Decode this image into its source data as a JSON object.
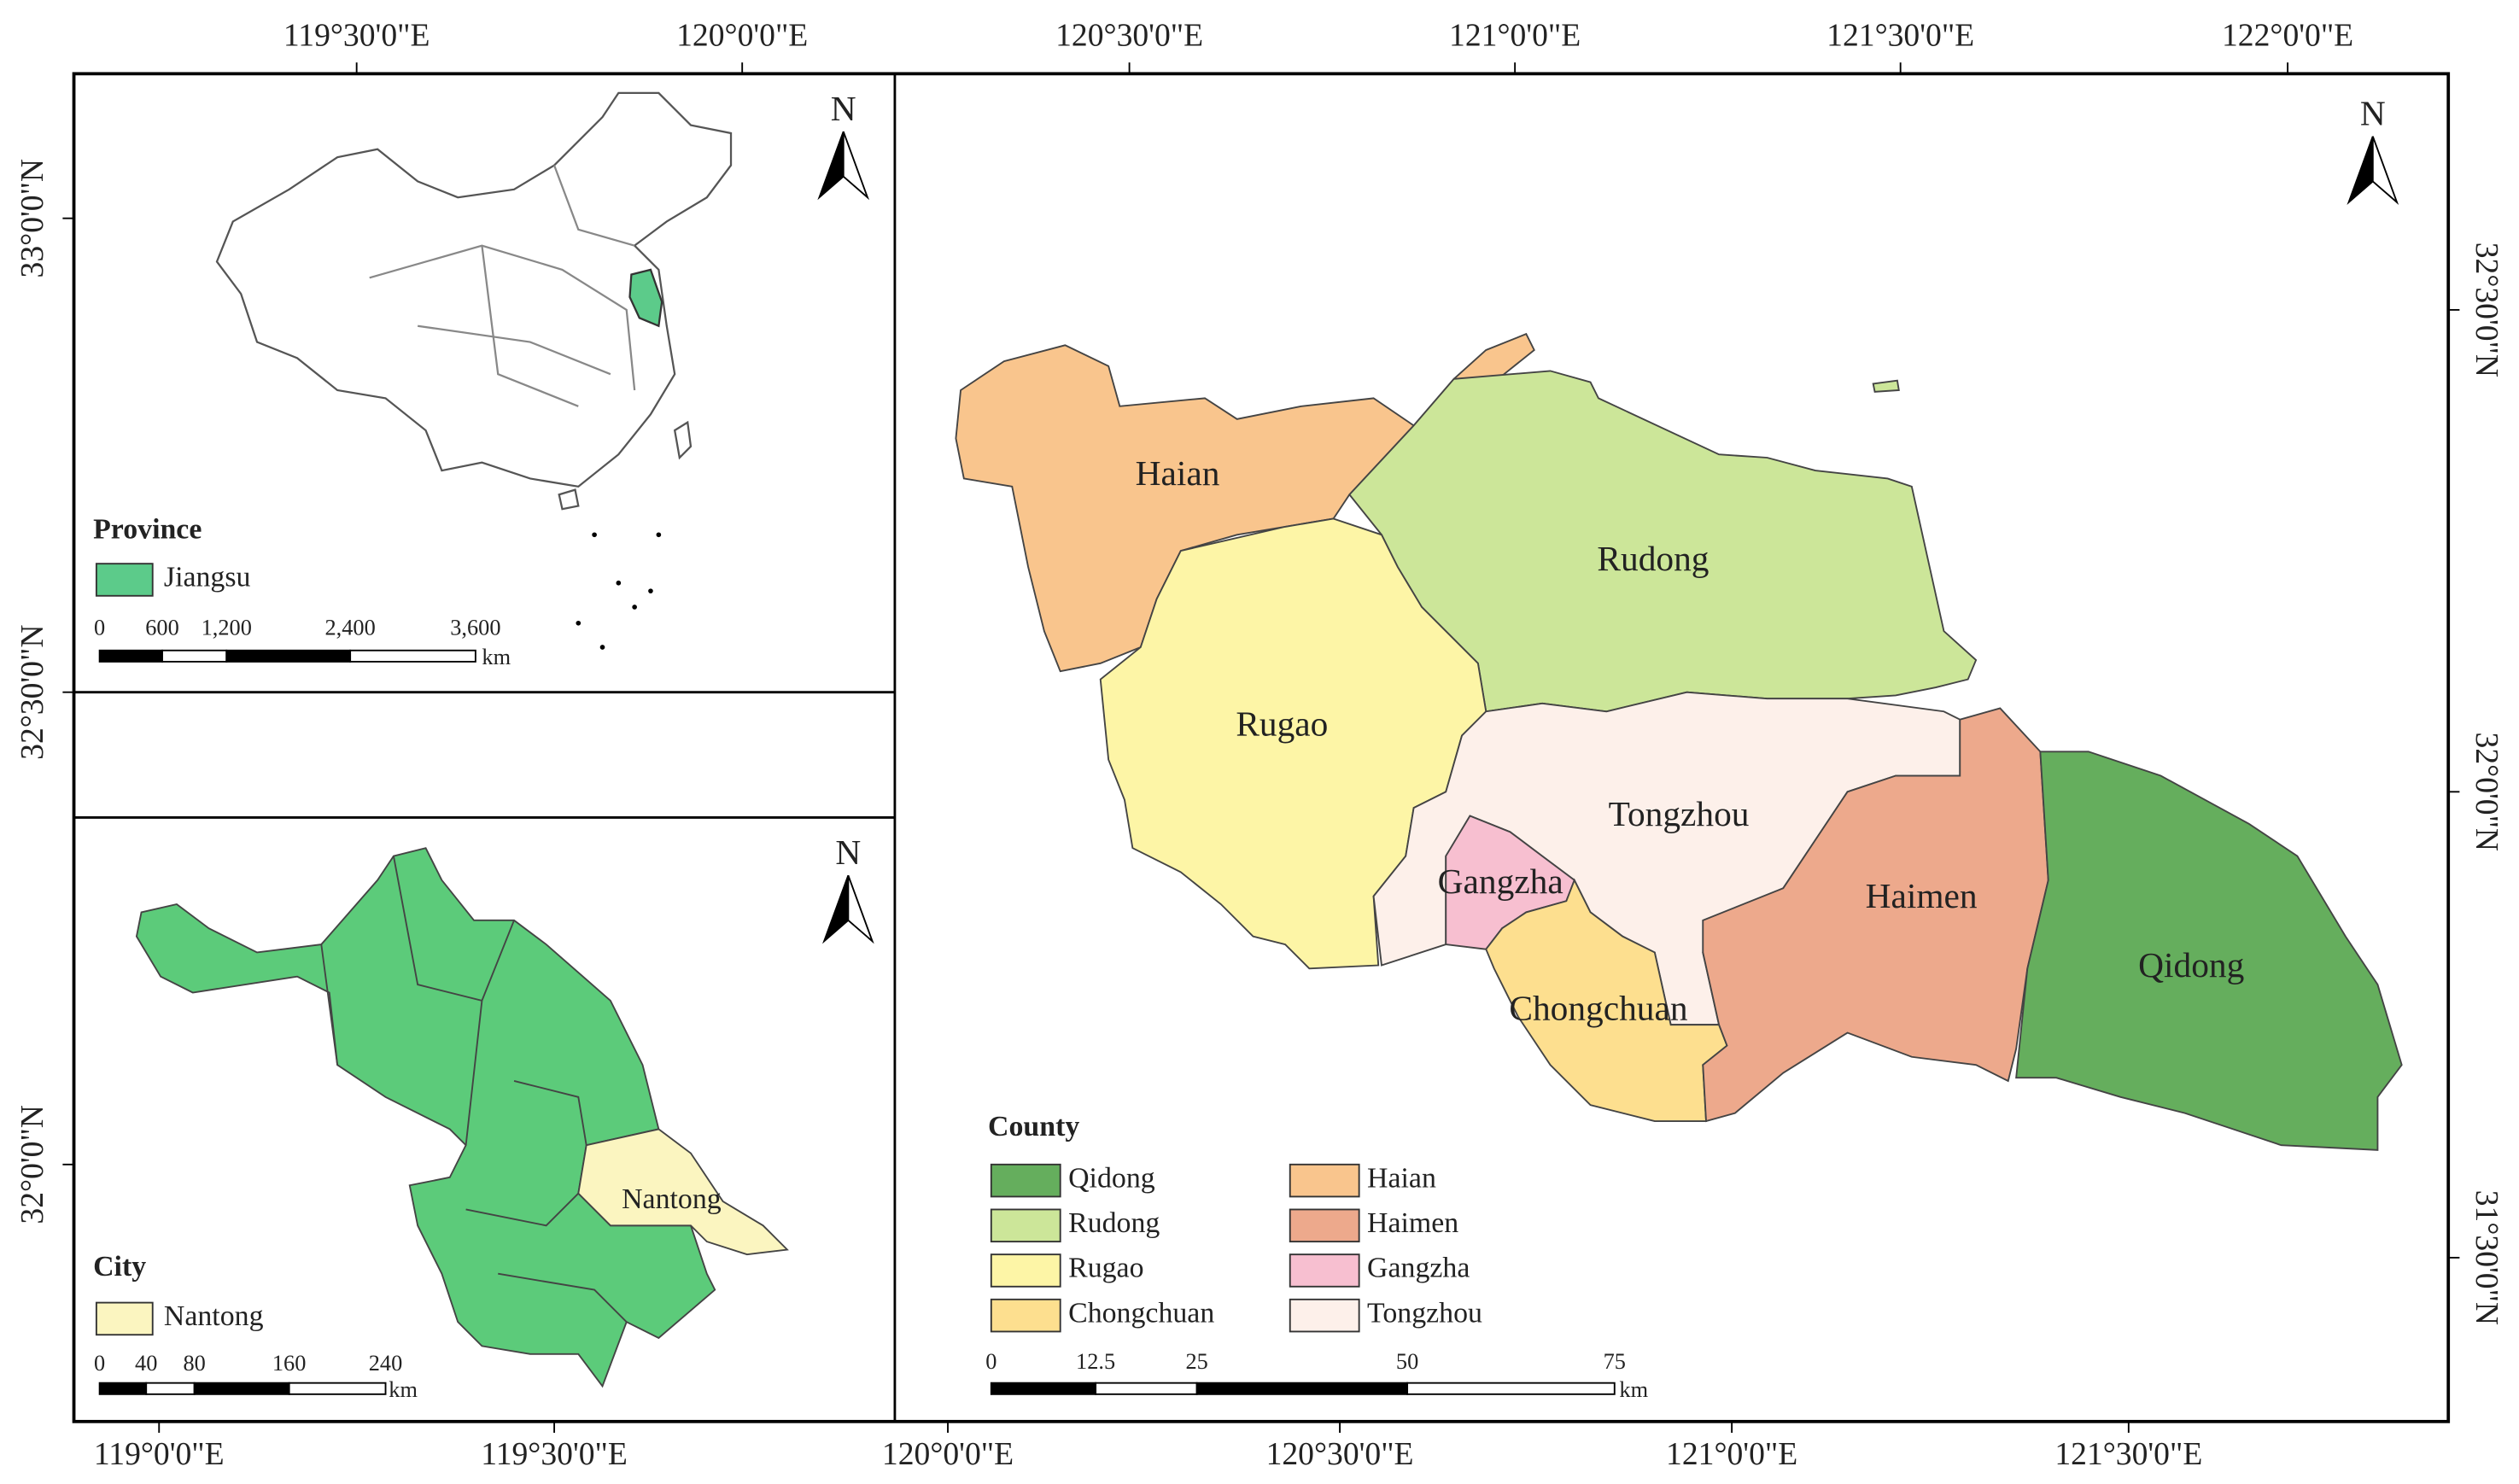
{
  "top_axis_labels": [
    "119°30'0\"E",
    "120°0'0\"E",
    "120°30'0\"E",
    "121°0'0\"E",
    "121°30'0\"E",
    "122°0'0\"E"
  ],
  "bottom_axis_labels": [
    "119°0'0\"E",
    "119°30'0\"E",
    "120°0'0\"E",
    "120°30'0\"E",
    "121°0'0\"E",
    "121°30'0\"E"
  ],
  "left_axis_labels": [
    "33°0'0\"N",
    "32°30'0\"N",
    "32°0'0\"N"
  ],
  "right_axis_labels": [
    "32°30'0\"N",
    "32°0'0\"N",
    "31°30'0\"N"
  ],
  "province_inset": {
    "north": "N",
    "legend_title": "Province",
    "legend_item": "Jiangsu",
    "scale_labels": [
      "0",
      "600",
      "1,200",
      "2,400",
      "3,600"
    ],
    "scale_unit": "km"
  },
  "city_inset": {
    "north": "N",
    "legend_title": "City",
    "legend_item": "Nantong",
    "map_label": "Nantong",
    "scale_labels": [
      "0",
      "40",
      "80",
      "160",
      "240"
    ],
    "scale_unit": "km"
  },
  "main_map": {
    "north": "N",
    "county_labels": [
      "Haian",
      "Rudong",
      "Rugao",
      "Tongzhou",
      "Gangzha",
      "Haimen",
      "Chongchuan",
      "Qidong"
    ],
    "legend_title": "County",
    "legend_items": [
      "Qidong",
      "Rudong",
      "Rugao",
      "Chongchuan",
      "Haian",
      "Haimen",
      "Gangzha",
      "Tongzhou"
    ],
    "scale_labels": [
      "0",
      "12.5",
      "25",
      "50",
      "75"
    ],
    "scale_unit": "km"
  }
}
